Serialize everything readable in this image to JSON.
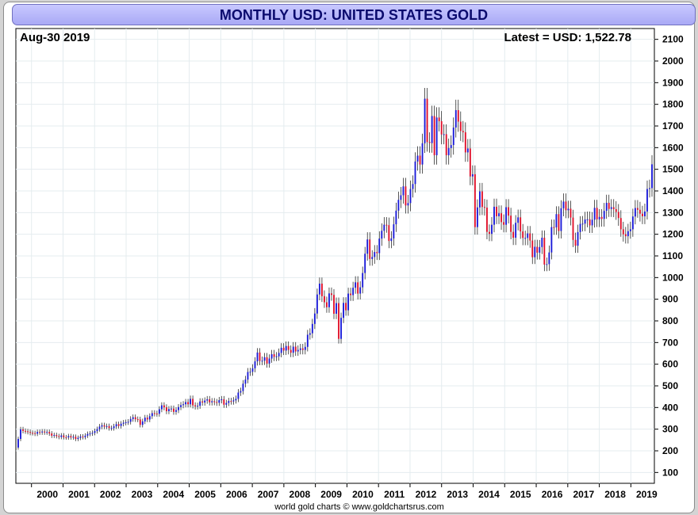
{
  "chart_data": {
    "type": "candlestick",
    "title": "MONTHLY USD: UNITED STATES GOLD",
    "date_label": "Aug-30  2019",
    "latest_label": "Latest = USD: 1,522.78",
    "footer": "world gold charts © www.goldchartsrus.com",
    "ylim": [
      50,
      2150
    ],
    "y_ticks": [
      100,
      200,
      300,
      400,
      500,
      600,
      700,
      800,
      900,
      1000,
      1100,
      1200,
      1300,
      1400,
      1500,
      1600,
      1700,
      1800,
      1900,
      2000,
      2100
    ],
    "x_ticks": [
      "2000",
      "2001",
      "2002",
      "2003",
      "2004",
      "2005",
      "2006",
      "2007",
      "2008",
      "2009",
      "2010",
      "2011",
      "2012",
      "2013",
      "2014",
      "2015",
      "2016",
      "2017",
      "2018",
      "2019"
    ],
    "grid": true,
    "up_color": "#1a1ad8",
    "down_color": "#e0102a",
    "start_year": 1999.58,
    "end_year": 2019.67,
    "closes": [
      255,
      299,
      292,
      290,
      287,
      283,
      282,
      279,
      287,
      285,
      289,
      285,
      287,
      280,
      270,
      273,
      268,
      264,
      271,
      263,
      262,
      268,
      262,
      265,
      255,
      260,
      266,
      263,
      270,
      278,
      280,
      283,
      291,
      300,
      312,
      318,
      312,
      314,
      305,
      305,
      313,
      323,
      315,
      325,
      330,
      332,
      334,
      347,
      355,
      346,
      345,
      320,
      336,
      353,
      345,
      360,
      374,
      372,
      371,
      392,
      410,
      401,
      383,
      393,
      395,
      380,
      388,
      402,
      411,
      415,
      425,
      415,
      440,
      410,
      405,
      408,
      428,
      423,
      432,
      438,
      424,
      429,
      425,
      422,
      434,
      438,
      413,
      421,
      430,
      428,
      433,
      440,
      469,
      476,
      510,
      529,
      564,
      565,
      581,
      613,
      654,
      615,
      616,
      632,
      603,
      626,
      646,
      634,
      636,
      652,
      676,
      663,
      684,
      666,
      653,
      681,
      659,
      666,
      673,
      666,
      680,
      736,
      743,
      786,
      834,
      922,
      972,
      914,
      886,
      863,
      927,
      920,
      833,
      882,
      717,
      814,
      883,
      849,
      926,
      919,
      953,
      978,
      926,
      955,
      1021,
      1110,
      1176,
      1086,
      1095,
      1118,
      1113,
      1180,
      1216,
      1244,
      1242,
      1169,
      1181,
      1246,
      1309,
      1359,
      1380,
      1421,
      1333,
      1344,
      1409,
      1432,
      1536,
      1563,
      1522,
      1620,
      1826,
      1626,
      1621,
      1746,
      1565,
      1739,
      1722,
      1661,
      1662,
      1565,
      1598,
      1612,
      1693,
      1773,
      1720,
      1677,
      1671,
      1578,
      1596,
      1467,
      1477,
      1233,
      1324,
      1398,
      1326,
      1323,
      1211,
      1202,
      1244,
      1327,
      1283,
      1297,
      1256,
      1244,
      1325,
      1286,
      1211,
      1184,
      1253,
      1278,
      1213,
      1183,
      1183,
      1204,
      1171,
      1094,
      1142,
      1115,
      1141,
      1184,
      1060,
      1062,
      1116,
      1233,
      1232,
      1293,
      1215,
      1320,
      1351,
      1311,
      1318,
      1277,
      1174,
      1147,
      1210,
      1248,
      1249,
      1268,
      1269,
      1241,
      1267,
      1322,
      1269,
      1280,
      1271,
      1308,
      1345,
      1317,
      1325,
      1316,
      1303,
      1275,
      1223,
      1200,
      1191,
      1214,
      1223,
      1282,
      1321,
      1313,
      1295,
      1283,
      1305,
      1409,
      1413,
      1523
    ]
  }
}
